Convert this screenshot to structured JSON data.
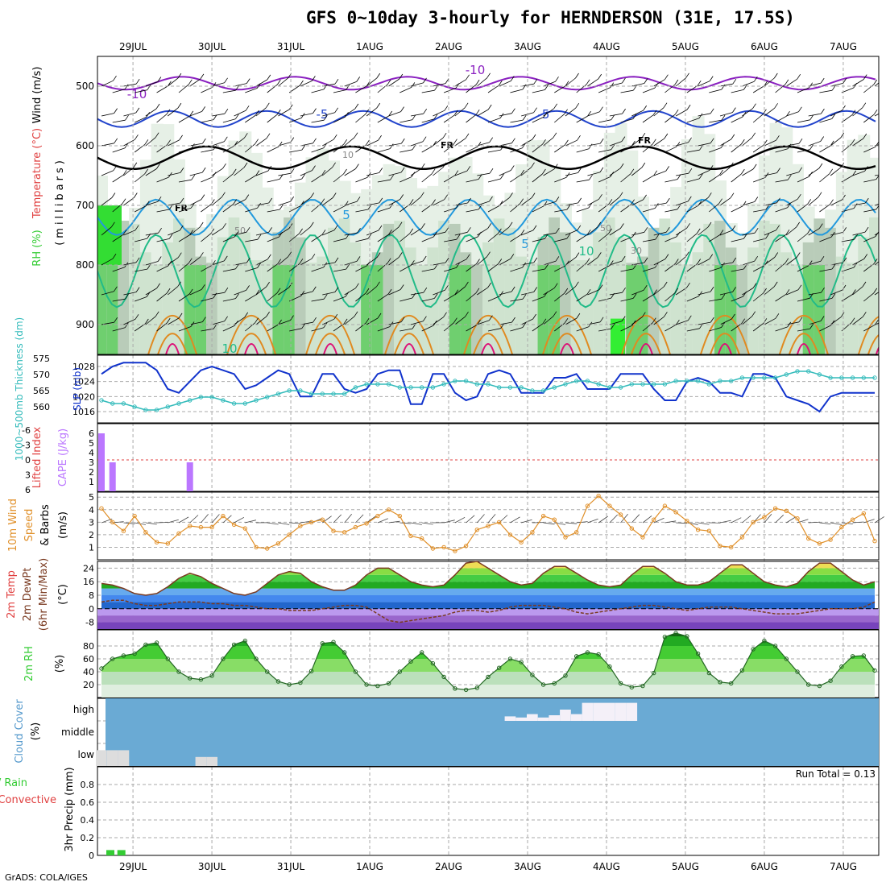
{
  "title": "GFS 0~10day 3-hourly for HERNDERSON (31E, 17.5S)",
  "footer": "GrADS: COLA/IGES",
  "run_total": "Run Total = 0.13",
  "time_axis": {
    "labels": [
      "29JUL",
      "30JUL",
      "31JUL",
      "1AUG",
      "2AUG",
      "3AUG",
      "4AUG",
      "5AUG",
      "6AUG",
      "7AUG"
    ],
    "start_offset_days": -0.45,
    "span_days": 9.9
  },
  "colors": {
    "wind_label": "#000000",
    "temp_label": "#e04040",
    "rh_label": "#33cc33",
    "cape": "#bb77ff",
    "lifted_index": "#e04040",
    "slp": "#1133cc",
    "thickness": "#33bbbb",
    "wind10m": "#e0902a",
    "rh2m": "#33cc33",
    "cloud_bg": "#6aaad4",
    "cloud_patch": "#f4f0f8",
    "cloud_low": "#dddddd",
    "precip_total": "#33cc33",
    "precip_conv": "#e04040",
    "grid": "#aaaaaa"
  },
  "panels": {
    "upper": {
      "labels": {
        "wind": "Wind (m/s)",
        "temp": "Temperature (°C)",
        "rh": "RH (%)",
        "unit": "(millibars)"
      },
      "y_ticks": [
        "500",
        "600",
        "700",
        "800",
        "900"
      ],
      "contour_labels": [
        "-10",
        "-10",
        "-5",
        "-5",
        "5",
        "5",
        "10",
        "10",
        "50",
        "50",
        "30",
        "10",
        "FR",
        "FR",
        "FR"
      ]
    },
    "pressure": {
      "labels": {
        "thickness": "1000~500mb Thickness (dm)",
        "slp": "SLP (mb)"
      },
      "thickness_ticks": [
        "560",
        "565",
        "570",
        "575"
      ],
      "slp_ticks": [
        "1016",
        "1020",
        "1024",
        "1028"
      ]
    },
    "cape": {
      "labels": {
        "li": "Lifted Index",
        "cape": "CAPE (J/kg)"
      },
      "li_ticks": [
        "-6",
        "-3",
        "0",
        "3",
        "6"
      ],
      "cape_ticks": [
        "1",
        "2",
        "3",
        "4",
        "5",
        "6"
      ]
    },
    "wind10m": {
      "labels": {
        "line1": "10m Wind",
        "line2": "Speed",
        "line3": "& Barbs",
        "unit": "(m/s)"
      },
      "y_ticks": [
        "1",
        "2",
        "3",
        "4",
        "5"
      ]
    },
    "temp2m": {
      "labels": {
        "line1": "2m Temp",
        "line2": "2m DewPt",
        "line3": "(6hr Min/Max)",
        "unit": "(°C)"
      },
      "y_ticks": [
        "-8",
        "0",
        "8",
        "16",
        "24"
      ]
    },
    "rh2m": {
      "labels": {
        "line1": "2m RH",
        "unit": "(%)"
      },
      "y_ticks": [
        "20",
        "40",
        "60",
        "80"
      ]
    },
    "cloud": {
      "labels": {
        "line1": "Cloud Cover",
        "unit": "(%)"
      },
      "levels": [
        "high",
        "middle",
        "low"
      ]
    },
    "precip": {
      "labels": {
        "line1": "Total / Rain",
        "line2": "Convective",
        "line3": "3hr Precip (mm)"
      },
      "y_ticks": [
        "0",
        "0.2",
        "0.4",
        "0.6",
        "0.8"
      ]
    }
  },
  "chart_data": [
    {
      "type": "line",
      "name": "sea-level-pressure-and-thickness",
      "series": [
        {
          "name": "SLP (mb)",
          "values": [
            1026,
            1028,
            1029,
            1029,
            1029,
            1027,
            1022,
            1021,
            1024,
            1027,
            1028,
            1027,
            1026,
            1022,
            1023,
            1025,
            1027,
            1026,
            1020,
            1020,
            1026,
            1026,
            1022,
            1021,
            1022,
            1026,
            1027,
            1027,
            1018,
            1018,
            1026,
            1026,
            1021,
            1019,
            1020,
            1026,
            1027,
            1026,
            1021,
            1021,
            1021,
            1025,
            1025,
            1026,
            1022,
            1022,
            1022,
            1026,
            1026,
            1026,
            1022,
            1019,
            1019,
            1024,
            1025,
            1024,
            1021,
            1021,
            1020,
            1026,
            1026,
            1025,
            1020,
            1019,
            1018,
            1016,
            1020,
            1021,
            1021,
            1021,
            1021
          ]
        },
        {
          "name": "1000-500mb Thickness (dm)",
          "values": [
            562,
            561,
            561,
            560,
            559,
            559,
            560,
            561,
            562,
            563,
            563,
            562,
            561,
            561,
            562,
            563,
            564,
            565,
            565,
            564,
            564,
            564,
            564,
            566,
            567,
            567,
            567,
            566,
            566,
            566,
            566,
            567,
            568,
            568,
            567,
            567,
            566,
            566,
            566,
            565,
            565,
            566,
            567,
            568,
            568,
            567,
            566,
            566,
            567,
            567,
            567,
            567,
            568,
            568,
            568,
            567,
            568,
            568,
            569,
            569,
            569,
            569,
            570,
            571,
            571,
            570,
            569,
            569,
            569,
            569,
            569
          ]
        }
      ],
      "slp_ylim": [
        1013,
        1031
      ],
      "thickness_ylim": [
        555,
        576
      ]
    },
    {
      "type": "bar",
      "name": "cape",
      "series": [
        {
          "name": "CAPE (J/kg)",
          "values": [
            6,
            3,
            0,
            0,
            0,
            0,
            0,
            0,
            3,
            0,
            0,
            0,
            0,
            0,
            0,
            0,
            0,
            0,
            0,
            0,
            0,
            0,
            0,
            0,
            0,
            0,
            0,
            0,
            0,
            0,
            0,
            0,
            0,
            0,
            0,
            0,
            0,
            0,
            0,
            0,
            0,
            0,
            0,
            0,
            0,
            0,
            0,
            0,
            0,
            0,
            0,
            0,
            0,
            0,
            0,
            0,
            0,
            0,
            0,
            0,
            0,
            0,
            0,
            0,
            0,
            0,
            0,
            0,
            0,
            0,
            0
          ]
        }
      ],
      "ylim": [
        0,
        7
      ]
    },
    {
      "type": "line",
      "name": "wind-10m",
      "series": [
        {
          "name": "10m Wind Speed (m/s)",
          "values": [
            4.1,
            3.0,
            2.3,
            3.5,
            2.2,
            1.4,
            1.3,
            2.1,
            2.7,
            2.6,
            2.6,
            3.5,
            2.8,
            2.5,
            1.0,
            0.9,
            1.3,
            2.0,
            2.7,
            3.0,
            3.2,
            2.3,
            2.2,
            2.6,
            2.9,
            3.5,
            4.0,
            3.5,
            1.9,
            1.7,
            0.9,
            1.0,
            0.7,
            1.1,
            2.4,
            2.7,
            3.0,
            2.0,
            1.4,
            2.2,
            3.5,
            3.2,
            1.8,
            2.2,
            4.3,
            5.1,
            4.3,
            3.6,
            2.5,
            1.8,
            3.2,
            4.3,
            3.8,
            3.1,
            2.4,
            2.3,
            1.1,
            1.0,
            1.8,
            3.0,
            3.4,
            4.1,
            3.9,
            3.3,
            1.7,
            1.3,
            1.6,
            2.6,
            3.2,
            3.7,
            1.5
          ]
        }
      ],
      "ylim": [
        0,
        5.4
      ]
    },
    {
      "type": "area",
      "name": "temperature-2m",
      "series": [
        {
          "name": "2m Temp (°C)",
          "values": [
            15,
            14,
            12,
            9,
            8,
            9,
            13,
            18,
            21,
            19,
            15,
            12,
            9,
            8,
            10,
            15,
            20,
            22,
            21,
            16,
            13,
            11,
            11,
            14,
            20,
            24,
            24,
            20,
            16,
            14,
            13,
            14,
            20,
            27,
            28,
            24,
            20,
            16,
            14,
            15,
            21,
            25,
            25,
            21,
            17,
            14,
            13,
            14,
            20,
            25,
            25,
            21,
            16,
            14,
            14,
            16,
            21,
            26,
            26,
            21,
            16,
            14,
            13,
            15,
            22,
            27,
            27,
            22,
            17,
            14,
            16
          ]
        },
        {
          "name": "2m DewPt (°C)",
          "values": [
            4,
            5,
            5,
            3,
            2,
            2,
            3,
            4,
            4,
            4,
            3,
            3,
            2,
            2,
            1,
            0,
            0,
            -1,
            -1,
            -1,
            0,
            1,
            2,
            2,
            1,
            -3,
            -7,
            -8,
            -7,
            -6,
            -5,
            -4,
            -2,
            -1,
            -1,
            -2,
            -1,
            1,
            2,
            2,
            2,
            1,
            0,
            -2,
            -3,
            -2,
            -1,
            0,
            1,
            2,
            2,
            1,
            0,
            -1,
            0,
            1,
            1,
            1,
            0,
            -1,
            -2,
            -3,
            -3,
            -3,
            -2,
            -1,
            0,
            0,
            0,
            1,
            4
          ]
        }
      ],
      "ylim": [
        -12,
        28
      ]
    },
    {
      "type": "area",
      "name": "relative-humidity-2m",
      "series": [
        {
          "name": "2m RH (%)",
          "values": [
            45,
            60,
            65,
            68,
            82,
            85,
            60,
            40,
            30,
            28,
            34,
            60,
            82,
            88,
            60,
            40,
            25,
            20,
            23,
            41,
            84,
            86,
            70,
            40,
            20,
            18,
            22,
            40,
            56,
            70,
            53,
            32,
            14,
            12,
            15,
            32,
            46,
            60,
            55,
            35,
            20,
            22,
            34,
            64,
            70,
            67,
            48,
            22,
            16,
            18,
            38,
            94,
            100,
            95,
            68,
            38,
            24,
            22,
            42,
            75,
            88,
            80,
            60,
            40,
            20,
            18,
            26,
            48,
            64,
            65,
            42
          ]
        }
      ],
      "ylim": [
        0,
        105
      ]
    },
    {
      "type": "bar",
      "name": "cloud-cover",
      "series": [
        {
          "name": "low",
          "values": [
            70,
            70,
            70,
            0,
            0,
            0,
            0,
            0,
            0,
            40,
            40,
            0,
            0,
            0,
            0,
            0,
            0,
            0,
            0,
            0,
            0,
            0,
            0,
            0,
            0,
            0,
            0,
            0,
            0,
            0,
            0,
            0,
            0,
            0,
            0,
            0,
            0,
            0,
            0,
            0,
            0,
            0,
            0,
            0,
            0,
            0,
            0,
            0,
            0,
            0,
            0,
            0,
            0,
            0,
            0,
            0,
            0,
            0,
            0,
            0,
            0,
            0,
            0,
            0,
            0,
            0,
            0,
            0,
            0,
            0,
            0
          ]
        },
        {
          "name": "high",
          "values": [
            0,
            0,
            0,
            0,
            0,
            0,
            0,
            0,
            0,
            0,
            0,
            0,
            0,
            0,
            0,
            0,
            0,
            0,
            0,
            0,
            0,
            0,
            0,
            0,
            0,
            0,
            0,
            0,
            0,
            0,
            0,
            0,
            0,
            0,
            0,
            0,
            0,
            20,
            15,
            30,
            15,
            25,
            50,
            30,
            80,
            80,
            80,
            80,
            80,
            0,
            0,
            0,
            0,
            0,
            0,
            0,
            0,
            0,
            0,
            0,
            0,
            0,
            0,
            0,
            0,
            0,
            0,
            0,
            0,
            0,
            0
          ]
        }
      ],
      "ylim": [
        0,
        100
      ]
    },
    {
      "type": "bar",
      "name": "precip-3hr",
      "series": [
        {
          "name": "3hr Precip (mm)",
          "values": [
            0.06,
            0.06,
            0,
            0,
            0,
            0,
            0,
            0,
            0,
            0,
            0,
            0,
            0,
            0,
            0,
            0,
            0,
            0,
            0,
            0,
            0,
            0,
            0,
            0,
            0,
            0,
            0,
            0,
            0,
            0,
            0,
            0,
            0,
            0,
            0,
            0,
            0,
            0,
            0,
            0,
            0,
            0,
            0,
            0,
            0,
            0,
            0,
            0,
            0,
            0,
            0,
            0,
            0,
            0,
            0,
            0,
            0,
            0,
            0,
            0,
            0,
            0,
            0,
            0,
            0,
            0,
            0,
            0,
            0,
            0,
            0
          ]
        }
      ],
      "ylim": [
        0,
        1.0
      ]
    }
  ]
}
